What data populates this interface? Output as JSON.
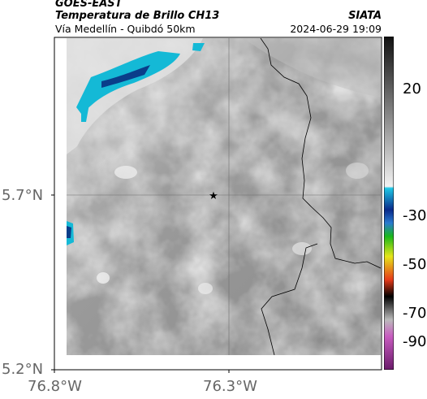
{
  "header": {
    "satellite": "GOES-EAST",
    "product": "Temperatura de Brillo CH13",
    "route": "Vía Medellín - Quibdó 50km",
    "organization": "SIATA",
    "datetime": "2024-06-29 19:09"
  },
  "axes": {
    "lat_labels": [
      "5.7°N",
      "5.2°N"
    ],
    "lon_labels": [
      "76.8°W",
      "76.3°W"
    ]
  },
  "colorbar": {
    "labels": [
      "20",
      "-30",
      "-50",
      "-70",
      "-90"
    ]
  },
  "marker": {
    "icon": "star-icon"
  }
}
